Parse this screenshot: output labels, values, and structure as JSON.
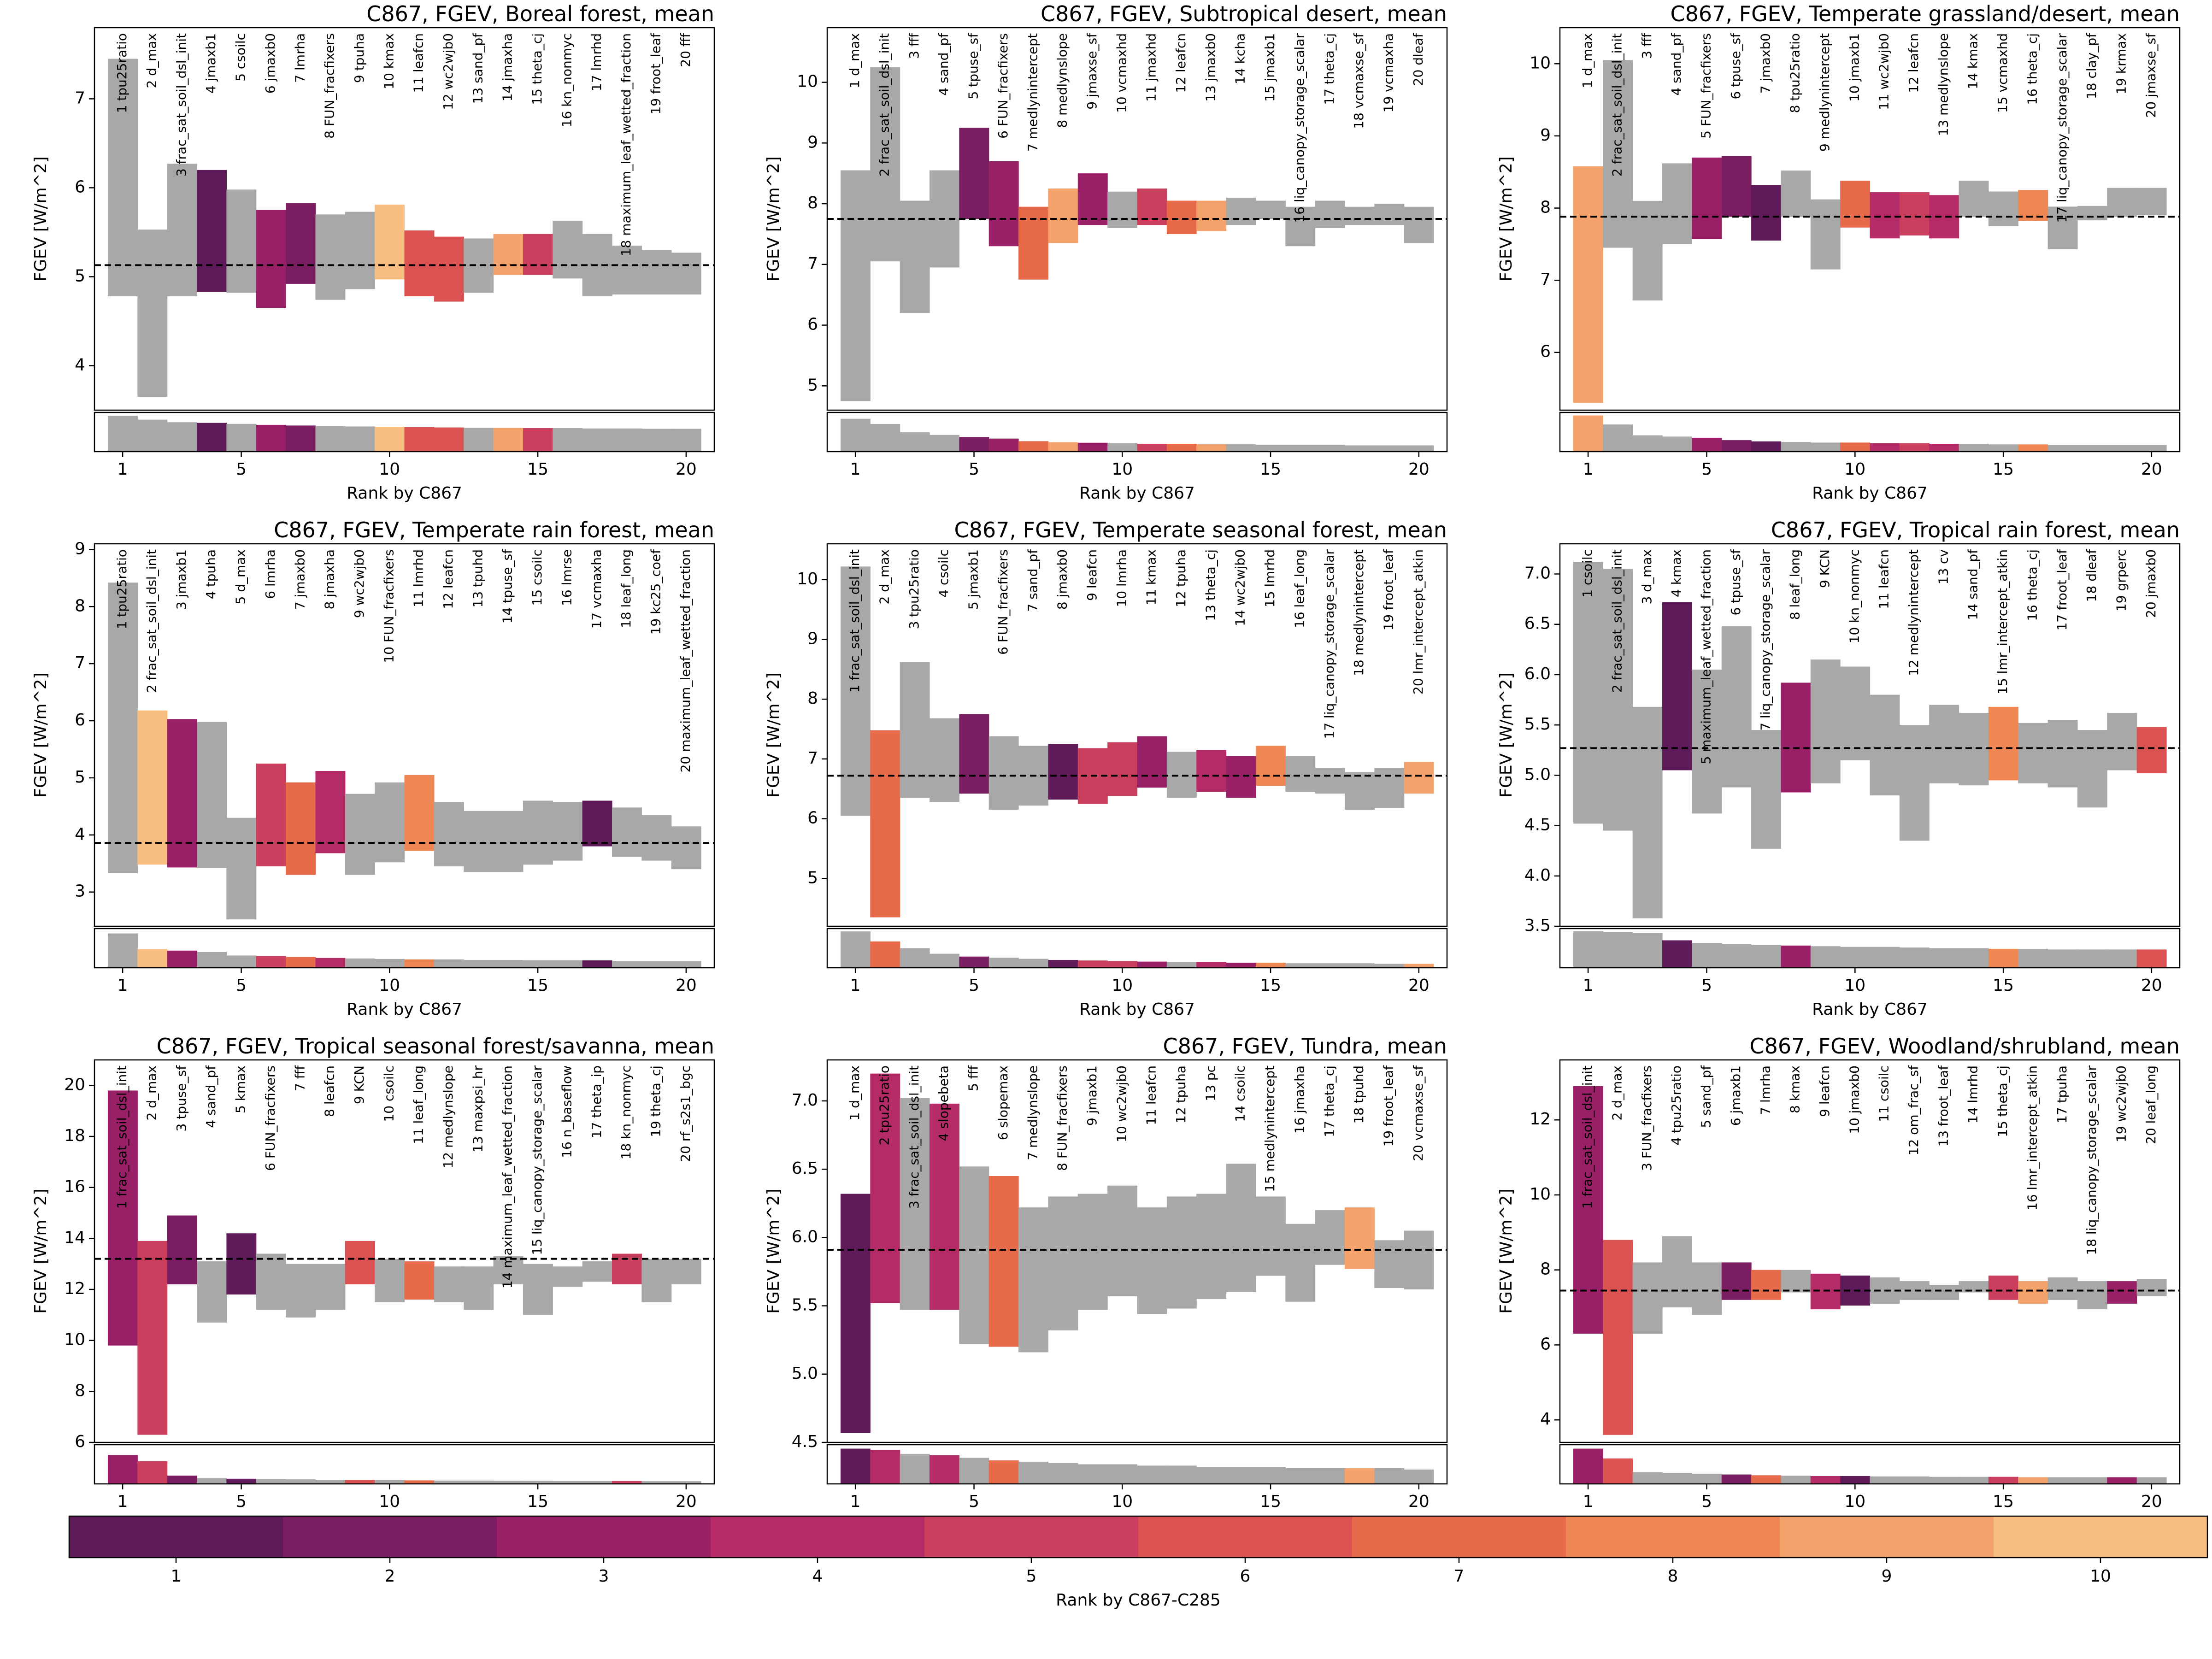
{
  "colorbar": {
    "label": "Rank by C867-C285",
    "ticks": [
      "1",
      "2",
      "3",
      "4",
      "5",
      "6",
      "7",
      "8",
      "9",
      "10"
    ],
    "colors": [
      "#5f1a59",
      "#7b1d61",
      "#992067",
      "#b52b67",
      "#cb3f5e",
      "#da5251",
      "#e76a4a",
      "#ef8755",
      "#f3a26c",
      "#f8be81"
    ]
  },
  "chart_data": [
    {
      "type": "bar",
      "title": "C867, FGEV, Boreal forest, mean",
      "xlabel": "Rank by C867",
      "ylabel": "FGEV [W/m^2]",
      "xticks": [
        "1",
        "5",
        "10",
        "15",
        "20"
      ],
      "yticks": [
        "4",
        "5",
        "6",
        "7"
      ],
      "ylim": [
        3.5,
        7.8
      ],
      "lower_ylim": [
        2.4,
        3.6
      ],
      "mean": 5.13,
      "params": [
        "tpu25ratio",
        "d_max",
        "frac_sat_soil_dsl_init",
        "jmaxb1",
        "csoilc",
        "jmaxb0",
        "lmrha",
        "FUN_fracfixers",
        "tpuha",
        "kmax",
        "leafcn",
        "wc2wjb0",
        "sand_pf",
        "jmaxha",
        "theta_cj",
        "kn_nonmyc",
        "lmrhd",
        "maximum_leaf_wetted_fraction",
        "froot_leaf",
        "fff"
      ],
      "low": [
        4.78,
        3.65,
        4.78,
        4.83,
        4.82,
        4.65,
        4.92,
        4.74,
        4.86,
        4.97,
        4.78,
        4.72,
        4.82,
        5.02,
        5.02,
        4.98,
        4.78,
        4.8,
        4.8,
        4.8
      ],
      "high": [
        7.45,
        5.53,
        6.27,
        6.2,
        5.98,
        5.75,
        5.83,
        5.7,
        5.73,
        5.81,
        5.52,
        5.45,
        5.43,
        5.48,
        5.48,
        5.63,
        5.48,
        5.35,
        5.3,
        5.27
      ],
      "diff_rank": [
        null,
        null,
        null,
        1,
        null,
        3,
        2,
        null,
        null,
        10,
        6,
        6,
        null,
        9,
        5,
        null,
        null,
        null,
        null,
        null
      ],
      "sensitivity": [
        3.5,
        3.38,
        3.3,
        3.28,
        3.25,
        3.22,
        3.2,
        3.18,
        3.17,
        3.16,
        3.15,
        3.14,
        3.13,
        3.13,
        3.12,
        3.12,
        3.11,
        3.11,
        3.1,
        3.1
      ]
    },
    {
      "type": "bar",
      "title": "C867, FGEV, Subtropical desert, mean",
      "xlabel": "Rank by C867",
      "ylabel": "FGEV [W/m^2]",
      "xticks": [
        "1",
        "5",
        "10",
        "15",
        "20"
      ],
      "yticks": [
        "5",
        "6",
        "7",
        "8",
        "9",
        "10"
      ],
      "ylim": [
        4.6,
        10.9
      ],
      "lower_ylim": [
        3.9,
        4.65
      ],
      "mean": 7.75,
      "params": [
        "d_max",
        "frac_sat_soil_dsl_init",
        "fff",
        "sand_pf",
        "tpuse_sf",
        "FUN_fracfixers",
        "medlynintercept",
        "medlynslope",
        "jmaxse_sf",
        "vcmaxhd",
        "jmaxhd",
        "leafcn",
        "jmaxb0",
        "kcha",
        "jmaxb1",
        "liq_canopy_storage_scalar",
        "theta_cj",
        "vcmaxse_sf",
        "vcmaxha",
        "dleaf"
      ],
      "low": [
        4.75,
        7.05,
        6.2,
        6.95,
        7.75,
        7.3,
        6.75,
        7.35,
        7.65,
        7.6,
        7.65,
        7.5,
        7.55,
        7.65,
        7.75,
        7.3,
        7.6,
        7.65,
        7.65,
        7.35
      ],
      "high": [
        8.55,
        10.25,
        8.05,
        8.55,
        9.25,
        8.7,
        7.95,
        8.25,
        8.5,
        8.2,
        8.25,
        8.05,
        8.05,
        8.1,
        8.05,
        7.95,
        8.05,
        7.95,
        8.0,
        7.95
      ],
      "diff_rank": [
        null,
        null,
        null,
        null,
        2,
        3,
        7,
        9,
        3,
        null,
        5,
        7,
        9,
        null,
        null,
        null,
        null,
        null,
        null,
        null
      ],
      "sensitivity": [
        4.53,
        4.43,
        4.27,
        4.22,
        4.18,
        4.15,
        4.1,
        4.08,
        4.07,
        4.06,
        4.05,
        4.05,
        4.04,
        4.04,
        4.03,
        4.03,
        4.03,
        4.02,
        4.02,
        4.02
      ]
    },
    {
      "type": "bar",
      "title": "C867, FGEV, Temperate grassland/desert, mean",
      "xlabel": "Rank by C867",
      "ylabel": "FGEV [W/m^2]",
      "xticks": [
        "1",
        "5",
        "10",
        "15",
        "20"
      ],
      "yticks": [
        "6",
        "7",
        "8",
        "9",
        "10"
      ],
      "ylim": [
        5.2,
        10.5
      ],
      "lower_ylim": [
        4.55,
        5.2
      ],
      "mean": 7.88,
      "params": [
        "d_max",
        "frac_sat_soil_dsl_init",
        "fff",
        "sand_pf",
        "FUN_fracfixers",
        "tpuse_sf",
        "jmaxb0",
        "tpu25ratio",
        "medlynintercept",
        "jmaxb1",
        "wc2wjb0",
        "leafcn",
        "medlynslope",
        "kmax",
        "vcmaxhd",
        "theta_cj",
        "liq_canopy_storage_scalar",
        "clay_pf",
        "krmax",
        "jmaxse_sf"
      ],
      "low": [
        5.3,
        7.45,
        6.72,
        7.5,
        7.57,
        7.88,
        7.55,
        7.88,
        7.15,
        7.73,
        7.58,
        7.62,
        7.58,
        7.88,
        7.75,
        7.82,
        7.43,
        7.83,
        7.88,
        7.9
      ],
      "high": [
        8.58,
        10.05,
        8.1,
        8.62,
        8.7,
        8.72,
        8.32,
        8.52,
        8.12,
        8.38,
        8.22,
        8.22,
        8.18,
        8.38,
        8.23,
        8.25,
        8.02,
        8.03,
        8.28,
        8.28
      ],
      "diff_rank": [
        9,
        null,
        null,
        null,
        3,
        2,
        1,
        null,
        null,
        7,
        4,
        5,
        4,
        null,
        null,
        8,
        null,
        null,
        null,
        null
      ],
      "sensitivity": [
        5.15,
        5.0,
        4.82,
        4.8,
        4.78,
        4.74,
        4.72,
        4.71,
        4.7,
        4.7,
        4.69,
        4.69,
        4.68,
        4.68,
        4.67,
        4.67,
        4.66,
        4.66,
        4.66,
        4.66
      ]
    },
    {
      "type": "bar",
      "title": "C867, FGEV, Temperate rain forest, mean",
      "xlabel": "Rank by C867",
      "ylabel": "FGEV [W/m^2]",
      "xticks": [
        "1",
        "5",
        "10",
        "15",
        "20"
      ],
      "yticks": [
        "3",
        "4",
        "5",
        "6",
        "7",
        "8",
        "9"
      ],
      "ylim": [
        2.4,
        9.1
      ],
      "lower_ylim": [
        1.6,
        2.4
      ],
      "mean": 3.86,
      "params": [
        "tpu25ratio",
        "frac_sat_soil_dsl_init",
        "jmaxb1",
        "tpuha",
        "d_max",
        "lmrha",
        "jmaxb0",
        "jmaxha",
        "wc2wjb0",
        "FUN_fracfixers",
        "lmrhd",
        "leafcn",
        "tpuhd",
        "tpuse_sf",
        "csoilc",
        "lmrse",
        "vcmaxha",
        "leaf_long",
        "kc25_coef",
        "maximum_leaf_wetted_fraction"
      ],
      "low": [
        3.33,
        3.48,
        3.43,
        3.42,
        2.52,
        3.45,
        3.3,
        3.68,
        3.3,
        3.52,
        3.72,
        3.45,
        3.35,
        3.35,
        3.48,
        3.55,
        3.8,
        3.62,
        3.55,
        3.4
      ],
      "high": [
        8.42,
        6.18,
        6.03,
        5.98,
        4.3,
        5.25,
        4.92,
        5.12,
        4.72,
        4.92,
        5.05,
        4.58,
        4.42,
        4.42,
        4.6,
        4.58,
        4.6,
        4.48,
        4.35,
        4.15
      ],
      "diff_rank": [
        null,
        10,
        3,
        null,
        null,
        5,
        7,
        4,
        null,
        null,
        8,
        null,
        null,
        null,
        null,
        null,
        1,
        null,
        null,
        null
      ],
      "sensitivity": [
        2.3,
        1.98,
        1.95,
        1.92,
        1.85,
        1.84,
        1.82,
        1.8,
        1.79,
        1.78,
        1.77,
        1.77,
        1.76,
        1.76,
        1.75,
        1.75,
        1.75,
        1.74,
        1.74,
        1.74
      ]
    },
    {
      "type": "bar",
      "title": "C867, FGEV, Temperate seasonal forest, mean",
      "xlabel": "Rank by C867",
      "ylabel": "FGEV [W/m^2]",
      "xticks": [
        "1",
        "5",
        "10",
        "15",
        "20"
      ],
      "yticks": [
        "5",
        "6",
        "7",
        "8",
        "9",
        "10"
      ],
      "ylim": [
        4.2,
        10.6
      ],
      "lower_ylim": [
        3.5,
        4.2
      ],
      "mean": 6.72,
      "params": [
        "frac_sat_soil_dsl_init",
        "d_max",
        "tpu25ratio",
        "csoilc",
        "jmaxb1",
        "FUN_fracfixers",
        "sand_pf",
        "jmaxb0",
        "leafcn",
        "lmrha",
        "kmax",
        "tpuha",
        "theta_cj",
        "wc2wjb0",
        "lmrhd",
        "leaf_long",
        "liq_canopy_storage_scalar",
        "medlynintercept",
        "froot_leaf",
        "lmr_intercept_atkin"
      ],
      "low": [
        6.05,
        4.35,
        6.35,
        6.28,
        6.42,
        6.15,
        6.22,
        6.32,
        6.25,
        6.38,
        6.52,
        6.35,
        6.45,
        6.35,
        6.55,
        6.45,
        6.42,
        6.15,
        6.18,
        6.42
      ],
      "high": [
        10.22,
        7.48,
        8.62,
        7.68,
        7.75,
        7.38,
        7.22,
        7.25,
        7.18,
        7.28,
        7.38,
        7.12,
        7.15,
        7.05,
        7.22,
        7.05,
        6.85,
        6.78,
        6.85,
        6.95
      ],
      "diff_rank": [
        null,
        7,
        null,
        null,
        2,
        null,
        null,
        1,
        5,
        5,
        3,
        null,
        4,
        3,
        8,
        null,
        null,
        null,
        null,
        9
      ],
      "sensitivity": [
        4.15,
        3.97,
        3.85,
        3.75,
        3.7,
        3.68,
        3.66,
        3.64,
        3.63,
        3.62,
        3.61,
        3.6,
        3.6,
        3.59,
        3.59,
        3.58,
        3.58,
        3.58,
        3.57,
        3.57
      ]
    },
    {
      "type": "bar",
      "title": "C867, FGEV, Tropical rain forest, mean",
      "xlabel": "Rank by C867",
      "ylabel": "FGEV [W/m^2]",
      "xticks": [
        "1",
        "5",
        "10",
        "15",
        "20"
      ],
      "yticks": [
        "3.5",
        "4.0",
        "4.5",
        "5.0",
        "5.5",
        "6.0",
        "6.5",
        "7.0"
      ],
      "ylim": [
        3.5,
        7.3
      ],
      "lower_ylim": [
        2.9,
        3.5
      ],
      "mean": 5.27,
      "params": [
        "csoilc",
        "frac_sat_soil_dsl_init",
        "d_max",
        "kmax",
        "maximum_leaf_wetted_fraction",
        "tpuse_sf",
        "liq_canopy_storage_scalar",
        "leaf_long",
        "KCN",
        "kn_nonmyc",
        "leafcn",
        "medlynintercept",
        "cv",
        "sand_pf",
        "lmr_intercept_atkin",
        "theta_cj",
        "froot_leaf",
        "dleaf",
        "grperc",
        "jmaxb0"
      ],
      "low": [
        4.52,
        4.45,
        3.58,
        5.05,
        4.62,
        4.88,
        4.27,
        4.83,
        4.92,
        5.15,
        4.8,
        4.35,
        4.92,
        4.9,
        4.95,
        4.92,
        4.88,
        4.68,
        5.05,
        5.02
      ],
      "high": [
        7.12,
        7.05,
        5.68,
        6.72,
        6.05,
        6.48,
        5.45,
        5.92,
        6.15,
        6.08,
        5.8,
        5.5,
        5.7,
        5.62,
        5.68,
        5.52,
        5.55,
        5.45,
        5.62,
        5.48
      ],
      "diff_rank": [
        null,
        null,
        null,
        1,
        null,
        null,
        null,
        3,
        null,
        null,
        null,
        null,
        null,
        null,
        8,
        null,
        null,
        null,
        null,
        6
      ],
      "sensitivity": [
        3.46,
        3.45,
        3.43,
        3.32,
        3.28,
        3.26,
        3.25,
        3.24,
        3.23,
        3.22,
        3.22,
        3.21,
        3.2,
        3.2,
        3.19,
        3.19,
        3.18,
        3.18,
        3.18,
        3.18
      ]
    },
    {
      "type": "bar",
      "title": "C867, FGEV, Tropical seasonal forest/savanna, mean",
      "xlabel": "Rank by C867",
      "ylabel": "FGEV [W/m^2]",
      "xticks": [
        "1",
        "5",
        "10",
        "15",
        "20"
      ],
      "yticks": [
        "6",
        "8",
        "10",
        "12",
        "14",
        "16",
        "18",
        "20"
      ],
      "ylim": [
        6.0,
        21.0
      ],
      "lower_ylim": [
        4.3,
        6.2
      ],
      "mean": 13.2,
      "params": [
        "frac_sat_soil_dsl_init",
        "d_max",
        "tpuse_sf",
        "sand_pf",
        "kmax",
        "FUN_fracfixers",
        "fff",
        "leafcn",
        "KCN",
        "csoilc",
        "leaf_long",
        "medlynslope",
        "maxpsi_hr",
        "maximum_leaf_wetted_fraction",
        "liq_canopy_storage_scalar",
        "n_baseflow",
        "theta_ip",
        "kn_nonmyc",
        "theta_cj",
        "rf_s2s1_bgc"
      ],
      "low": [
        9.8,
        6.3,
        12.2,
        10.7,
        11.8,
        11.2,
        10.9,
        11.2,
        12.2,
        11.5,
        11.6,
        11.5,
        11.2,
        12.2,
        11.0,
        12.1,
        12.3,
        12.2,
        11.5,
        12.2
      ],
      "high": [
        19.8,
        13.9,
        14.9,
        13.1,
        14.2,
        13.4,
        13.0,
        13.0,
        13.9,
        13.2,
        13.1,
        12.9,
        12.9,
        13.3,
        13.0,
        12.9,
        13.1,
        13.4,
        13.2,
        13.2
      ],
      "diff_rank": [
        3,
        5,
        2,
        null,
        1,
        null,
        null,
        null,
        6,
        null,
        7,
        null,
        null,
        null,
        null,
        null,
        null,
        5,
        null,
        null
      ],
      "sensitivity": [
        5.7,
        5.4,
        4.7,
        4.58,
        4.55,
        4.53,
        4.52,
        4.5,
        4.49,
        4.48,
        4.47,
        4.46,
        4.46,
        4.45,
        4.45,
        4.44,
        4.44,
        4.44,
        4.43,
        4.43
      ]
    },
    {
      "type": "bar",
      "title": "C867, FGEV, Tundra, mean",
      "xlabel": "Rank by C867",
      "ylabel": "FGEV [W/m^2]",
      "xticks": [
        "1",
        "5",
        "10",
        "15",
        "20"
      ],
      "yticks": [
        "4.5",
        "5.0",
        "5.5",
        "6.0",
        "6.5",
        "7.0"
      ],
      "ylim": [
        4.5,
        7.3
      ],
      "lower_ylim": [
        4.2,
        4.5
      ],
      "mean": 5.91,
      "params": [
        "d_max",
        "tpu25ratio",
        "frac_sat_soil_dsl_init",
        "slopebeta",
        "fff",
        "slopemax",
        "medlynslope",
        "FUN_fracfixers",
        "jmaxb1",
        "wc2wjb0",
        "leafcn",
        "tpuha",
        "pc",
        "csoilc",
        "medlynintercept",
        "jmaxha",
        "theta_cj",
        "tpuhd",
        "froot_leaf",
        "vcmaxse_sf"
      ],
      "low": [
        4.57,
        5.52,
        5.47,
        5.47,
        5.22,
        5.2,
        5.16,
        5.32,
        5.47,
        5.57,
        5.44,
        5.48,
        5.55,
        5.6,
        5.72,
        5.53,
        5.8,
        5.77,
        5.63,
        5.62
      ],
      "high": [
        6.32,
        7.2,
        7.02,
        6.98,
        6.52,
        6.45,
        6.22,
        6.3,
        6.32,
        6.38,
        6.22,
        6.3,
        6.32,
        6.54,
        6.3,
        6.1,
        6.2,
        6.22,
        5.98,
        6.05
      ],
      "diff_rank": [
        1,
        4,
        null,
        4,
        null,
        7,
        null,
        null,
        null,
        null,
        null,
        null,
        null,
        null,
        null,
        null,
        null,
        9,
        null,
        null
      ],
      "sensitivity": [
        4.47,
        4.46,
        4.43,
        4.42,
        4.4,
        4.38,
        4.37,
        4.36,
        4.35,
        4.35,
        4.34,
        4.34,
        4.33,
        4.33,
        4.33,
        4.32,
        4.32,
        4.32,
        4.32,
        4.31
      ]
    },
    {
      "type": "bar",
      "title": "C867, FGEV, Woodland/shrubland, mean",
      "xlabel": "Rank by C867",
      "ylabel": "FGEV [W/m^2]",
      "xticks": [
        "1",
        "5",
        "10",
        "15",
        "20"
      ],
      "yticks": [
        "4",
        "6",
        "8",
        "10",
        "12"
      ],
      "ylim": [
        3.4,
        13.6
      ],
      "lower_ylim": [
        2.4,
        3.4
      ],
      "mean": 7.45,
      "params": [
        "frac_sat_soil_dsl_init",
        "d_max",
        "FUN_fracfixers",
        "tpu25ratio",
        "sand_pf",
        "jmaxb1",
        "lmrha",
        "kmax",
        "leafcn",
        "jmaxb0",
        "csoilc",
        "om_frac_sf",
        "froot_leaf",
        "lmrhd",
        "theta_cj",
        "lmr_intercept_atkin",
        "tpuha",
        "liq_canopy_storage_scalar",
        "wc2wjb0",
        "leaf_long"
      ],
      "low": [
        6.3,
        3.6,
        6.3,
        7.0,
        6.8,
        7.2,
        7.2,
        7.4,
        6.95,
        7.05,
        7.1,
        7.2,
        7.2,
        7.4,
        7.2,
        7.1,
        7.2,
        6.95,
        7.1,
        7.3
      ],
      "high": [
        12.9,
        8.8,
        8.2,
        8.9,
        8.2,
        8.2,
        8.0,
        8.0,
        7.9,
        7.85,
        7.8,
        7.7,
        7.6,
        7.7,
        7.85,
        7.7,
        7.8,
        7.7,
        7.7,
        7.75
      ],
      "diff_rank": [
        3,
        6,
        null,
        null,
        null,
        2,
        7,
        null,
        4,
        1,
        null,
        null,
        null,
        null,
        5,
        9,
        null,
        null,
        3,
        null
      ],
      "sensitivity": [
        3.3,
        3.05,
        2.7,
        2.68,
        2.66,
        2.64,
        2.62,
        2.61,
        2.6,
        2.6,
        2.59,
        2.59,
        2.58,
        2.58,
        2.58,
        2.57,
        2.57,
        2.57,
        2.57,
        2.57
      ]
    }
  ]
}
